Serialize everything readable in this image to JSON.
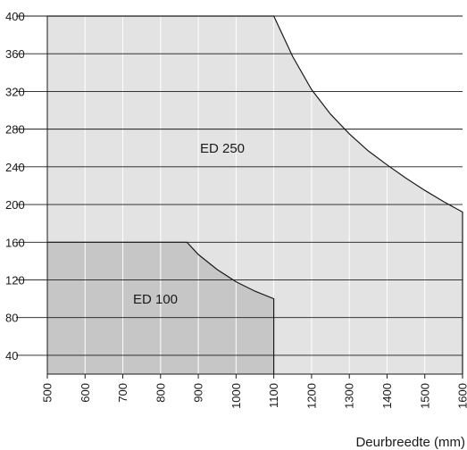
{
  "chart_data": {
    "type": "area",
    "title": "",
    "xlabel": "Deurbreedte (mm)",
    "ylabel": "",
    "xlim": [
      500,
      1600
    ],
    "ylim": [
      20,
      400
    ],
    "x_ticks": [
      500,
      600,
      700,
      800,
      900,
      1000,
      1100,
      1200,
      1300,
      1400,
      1500,
      1600
    ],
    "y_ticks": [
      40,
      80,
      120,
      160,
      200,
      240,
      280,
      320,
      360,
      400
    ],
    "grid": true,
    "series": [
      {
        "name": "ED 250",
        "color": "#e3e3e3",
        "points": [
          [
            500,
            400
          ],
          [
            1100,
            400
          ],
          [
            1150,
            357
          ],
          [
            1200,
            322
          ],
          [
            1250,
            296
          ],
          [
            1300,
            275
          ],
          [
            1350,
            257
          ],
          [
            1400,
            242
          ],
          [
            1450,
            228
          ],
          [
            1500,
            215
          ],
          [
            1550,
            203
          ],
          [
            1600,
            192
          ]
        ]
      },
      {
        "name": "ED 100",
        "color": "#c6c6c6",
        "points": [
          [
            500,
            160
          ],
          [
            870,
            160
          ],
          [
            900,
            147
          ],
          [
            950,
            131
          ],
          [
            1000,
            118
          ],
          [
            1050,
            108
          ],
          [
            1100,
            100
          ]
        ]
      }
    ]
  },
  "labels": {
    "ed250": "ED 250",
    "ed100": "ED 100",
    "x_axis_title": "Deurbreedte (mm)"
  }
}
